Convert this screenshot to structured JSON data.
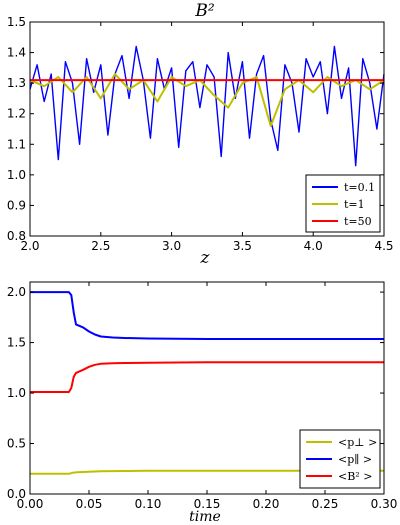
{
  "chart_data": [
    {
      "type": "line",
      "title": "B²",
      "xlabel": "z",
      "ylabel": "",
      "xlim": [
        2.0,
        4.5
      ],
      "ylim": [
        0.8,
        1.5
      ],
      "xticks": [
        "2.0",
        "2.5",
        "3.0",
        "3.5",
        "4.0",
        "4.5"
      ],
      "yticks": [
        "0.8",
        "0.9",
        "1.0",
        "1.1",
        "1.2",
        "1.3",
        "1.4",
        "1.5"
      ],
      "legend_position": "lower-right",
      "series": [
        {
          "name": "t=0.1",
          "color": "#0000ff",
          "x": [
            2.0,
            2.05,
            2.1,
            2.15,
            2.2,
            2.25,
            2.3,
            2.35,
            2.4,
            2.45,
            2.5,
            2.55,
            2.6,
            2.65,
            2.7,
            2.75,
            2.8,
            2.85,
            2.9,
            2.95,
            3.0,
            3.05,
            3.1,
            3.15,
            3.2,
            3.25,
            3.3,
            3.35,
            3.4,
            3.45,
            3.5,
            3.55,
            3.6,
            3.65,
            3.7,
            3.75,
            3.8,
            3.85,
            3.9,
            3.95,
            4.0,
            4.05,
            4.1,
            4.15,
            4.2,
            4.25,
            4.3,
            4.35,
            4.4,
            4.45,
            4.5
          ],
          "y": [
            1.28,
            1.36,
            1.24,
            1.33,
            1.05,
            1.37,
            1.3,
            1.1,
            1.38,
            1.27,
            1.36,
            1.13,
            1.33,
            1.39,
            1.25,
            1.42,
            1.31,
            1.12,
            1.38,
            1.28,
            1.35,
            1.09,
            1.34,
            1.37,
            1.22,
            1.36,
            1.32,
            1.06,
            1.4,
            1.25,
            1.37,
            1.12,
            1.33,
            1.39,
            1.18,
            1.08,
            1.36,
            1.3,
            1.14,
            1.38,
            1.32,
            1.37,
            1.2,
            1.42,
            1.25,
            1.35,
            1.03,
            1.38,
            1.3,
            1.15,
            1.33
          ]
        },
        {
          "name": "t=1",
          "color": "#bfbf00",
          "x": [
            2.0,
            2.1,
            2.2,
            2.3,
            2.4,
            2.5,
            2.6,
            2.7,
            2.8,
            2.9,
            3.0,
            3.1,
            3.2,
            3.3,
            3.4,
            3.5,
            3.6,
            3.7,
            3.8,
            3.9,
            4.0,
            4.1,
            4.2,
            4.3,
            4.4,
            4.5
          ],
          "y": [
            1.31,
            1.29,
            1.32,
            1.27,
            1.32,
            1.25,
            1.33,
            1.28,
            1.31,
            1.24,
            1.32,
            1.29,
            1.31,
            1.26,
            1.22,
            1.3,
            1.32,
            1.16,
            1.28,
            1.31,
            1.27,
            1.32,
            1.29,
            1.31,
            1.28,
            1.31
          ]
        },
        {
          "name": "t=50",
          "color": "#ff0000",
          "x": [
            2.0,
            2.5,
            3.0,
            3.5,
            4.0,
            4.5
          ],
          "y": [
            1.31,
            1.31,
            1.31,
            1.31,
            1.31,
            1.31
          ]
        }
      ]
    },
    {
      "type": "line",
      "title": "",
      "xlabel": "time",
      "ylabel": "",
      "xlim": [
        0.0,
        0.3
      ],
      "ylim": [
        0.0,
        2.1
      ],
      "xticks": [
        "0.00",
        "0.05",
        "0.10",
        "0.15",
        "0.20",
        "0.25",
        "0.30"
      ],
      "yticks": [
        "0.0",
        "0.5",
        "1.0",
        "1.5",
        "2.0"
      ],
      "legend_position": "lower-right",
      "series": [
        {
          "name": "<p⊥ >",
          "color": "#bfbf00",
          "x": [
            0.0,
            0.033,
            0.036,
            0.04,
            0.05,
            0.06,
            0.08,
            0.1,
            0.15,
            0.2,
            0.25,
            0.3
          ],
          "y": [
            0.2,
            0.2,
            0.21,
            0.215,
            0.22,
            0.225,
            0.228,
            0.23,
            0.23,
            0.23,
            0.23,
            0.23
          ]
        },
        {
          "name": "<p∥ >",
          "color": "#0000ff",
          "x": [
            0.0,
            0.033,
            0.035,
            0.037,
            0.039,
            0.045,
            0.05,
            0.055,
            0.06,
            0.07,
            0.08,
            0.1,
            0.15,
            0.2,
            0.25,
            0.3
          ],
          "y": [
            2.0,
            2.0,
            1.97,
            1.8,
            1.68,
            1.65,
            1.61,
            1.58,
            1.56,
            1.55,
            1.545,
            1.54,
            1.535,
            1.535,
            1.535,
            1.535
          ]
        },
        {
          "name": "<B² >",
          "color": "#ff0000",
          "x": [
            0.0,
            0.033,
            0.035,
            0.037,
            0.039,
            0.045,
            0.05,
            0.055,
            0.06,
            0.07,
            0.08,
            0.1,
            0.15,
            0.2,
            0.25,
            0.3
          ],
          "y": [
            1.01,
            1.01,
            1.05,
            1.16,
            1.2,
            1.23,
            1.26,
            1.28,
            1.29,
            1.295,
            1.298,
            1.3,
            1.305,
            1.305,
            1.305,
            1.305
          ]
        }
      ]
    }
  ]
}
